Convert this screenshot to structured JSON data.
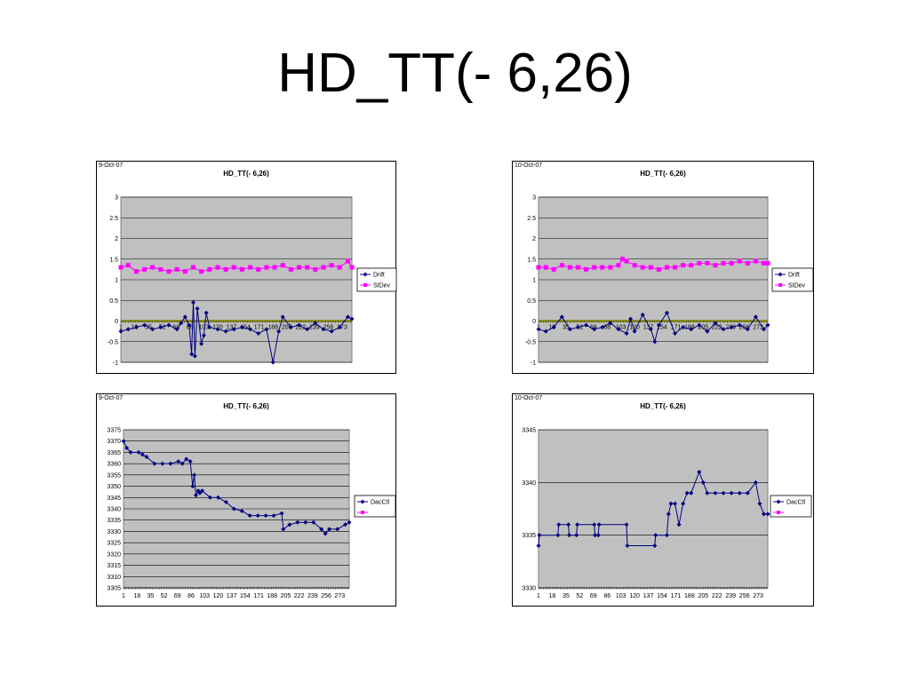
{
  "slide": {
    "title": "HD_TT(- 6,26)"
  },
  "colors": {
    "plot_bg": "#c0c0c0",
    "drift": "#000080",
    "stdev": "#ff00ff",
    "dacctl": "#000080",
    "grid": "#000000",
    "zero_line": "#808000"
  },
  "chart_data": [
    {
      "id": "c1",
      "type": "line",
      "date": "9-Oct-07",
      "title": "HD_TT(- 6,26)",
      "ylim": [
        -1,
        3
      ],
      "yticks": [
        "3",
        "2.5",
        "2",
        "1.5",
        "1",
        "0.5",
        "0",
        "-0.5",
        "-1"
      ],
      "xticks": [
        "1",
        "18",
        "35",
        "52",
        "69",
        "86",
        "103",
        "120",
        "137",
        "154",
        "171",
        "188",
        "205",
        "222",
        "239",
        "256",
        "273"
      ],
      "n_points": 285,
      "series": [
        {
          "name": "Drift",
          "marker": "diamond",
          "color": "#000080",
          "x": [
            1,
            10,
            20,
            30,
            40,
            50,
            60,
            70,
            75,
            80,
            85,
            88,
            90,
            92,
            95,
            100,
            103,
            106,
            110,
            120,
            130,
            140,
            150,
            160,
            170,
            180,
            188,
            195,
            200,
            210,
            220,
            230,
            240,
            250,
            260,
            270,
            280,
            285
          ],
          "y": [
            -0.25,
            -0.2,
            -0.15,
            -0.1,
            -0.2,
            -0.15,
            -0.1,
            -0.2,
            -0.05,
            0.1,
            -0.1,
            -0.8,
            0.45,
            -0.85,
            0.3,
            -0.55,
            -0.35,
            0.2,
            -0.15,
            -0.2,
            -0.25,
            -0.2,
            -0.15,
            -0.2,
            -0.3,
            -0.2,
            -1.0,
            -0.25,
            0.1,
            -0.15,
            -0.1,
            -0.2,
            -0.05,
            -0.2,
            -0.25,
            -0.15,
            0.1,
            0.05
          ]
        },
        {
          "name": "StDev",
          "marker": "square",
          "color": "#ff00ff",
          "x": [
            1,
            10,
            20,
            30,
            40,
            50,
            60,
            70,
            80,
            90,
            100,
            110,
            120,
            130,
            140,
            150,
            160,
            170,
            180,
            190,
            200,
            210,
            220,
            230,
            240,
            250,
            260,
            270,
            280,
            285
          ],
          "y": [
            1.3,
            1.35,
            1.2,
            1.25,
            1.3,
            1.25,
            1.2,
            1.25,
            1.2,
            1.3,
            1.2,
            1.25,
            1.3,
            1.25,
            1.3,
            1.25,
            1.3,
            1.25,
            1.3,
            1.3,
            1.35,
            1.25,
            1.3,
            1.3,
            1.25,
            1.3,
            1.35,
            1.3,
            1.45,
            1.3
          ]
        }
      ]
    },
    {
      "id": "c2",
      "type": "line",
      "date": "10-Oct-07",
      "title": "HD_TT(- 6,26)",
      "ylim": [
        -1,
        3
      ],
      "yticks": [
        "3",
        "2.5",
        "2",
        "1.5",
        "1",
        "0.5",
        "0",
        "-0.5",
        "-1"
      ],
      "xticks": [
        "1",
        "18",
        "35",
        "52",
        "69",
        "86",
        "103",
        "120",
        "137",
        "154",
        "171",
        "188",
        "205",
        "222",
        "239",
        "256",
        "273"
      ],
      "n_points": 285,
      "series": [
        {
          "name": "Drift",
          "marker": "diamond",
          "color": "#000080",
          "x": [
            1,
            10,
            20,
            30,
            40,
            50,
            60,
            70,
            80,
            90,
            100,
            110,
            115,
            120,
            130,
            140,
            145,
            150,
            160,
            170,
            180,
            190,
            200,
            210,
            220,
            230,
            240,
            250,
            260,
            270,
            280,
            285
          ],
          "y": [
            -0.2,
            -0.25,
            -0.15,
            0.1,
            -0.2,
            -0.15,
            -0.1,
            -0.2,
            -0.15,
            -0.05,
            -0.2,
            -0.3,
            0.05,
            -0.25,
            0.15,
            -0.2,
            -0.5,
            -0.1,
            0.2,
            -0.3,
            -0.15,
            -0.2,
            -0.1,
            -0.25,
            -0.05,
            -0.2,
            -0.15,
            -0.1,
            -0.2,
            0.1,
            -0.2,
            -0.1
          ]
        },
        {
          "name": "StDev",
          "marker": "square",
          "color": "#ff00ff",
          "x": [
            1,
            10,
            20,
            30,
            40,
            50,
            60,
            70,
            80,
            90,
            100,
            105,
            110,
            120,
            130,
            140,
            150,
            160,
            170,
            180,
            190,
            200,
            210,
            220,
            230,
            240,
            250,
            260,
            270,
            280,
            285
          ],
          "y": [
            1.3,
            1.3,
            1.25,
            1.35,
            1.3,
            1.3,
            1.25,
            1.3,
            1.3,
            1.3,
            1.35,
            1.5,
            1.45,
            1.35,
            1.3,
            1.3,
            1.25,
            1.3,
            1.3,
            1.35,
            1.35,
            1.4,
            1.4,
            1.35,
            1.4,
            1.4,
            1.45,
            1.4,
            1.45,
            1.4,
            1.4
          ]
        }
      ]
    },
    {
      "id": "c3",
      "type": "line",
      "date": "9-Oct-07",
      "title": "HD_TT(- 6,26)",
      "ylim": [
        3305,
        3375
      ],
      "yticks": [
        "3375",
        "3370",
        "3365",
        "3360",
        "3355",
        "3350",
        "3345",
        "3340",
        "3335",
        "3330",
        "3325",
        "3320",
        "3315",
        "3310",
        "3305"
      ],
      "xticks": [
        "1",
        "18",
        "35",
        "52",
        "69",
        "86",
        "103",
        "120",
        "137",
        "154",
        "171",
        "188",
        "205",
        "222",
        "239",
        "256",
        "273"
      ],
      "n_points": 285,
      "series": [
        {
          "name": "DacCtl",
          "marker": "diamond",
          "color": "#000080",
          "x": [
            1,
            5,
            10,
            20,
            25,
            30,
            40,
            50,
            60,
            70,
            75,
            80,
            85,
            88,
            90,
            92,
            95,
            97,
            100,
            110,
            120,
            130,
            140,
            150,
            160,
            170,
            180,
            190,
            200,
            202,
            210,
            220,
            230,
            240,
            250,
            255,
            260,
            270,
            280,
            285
          ],
          "y": [
            3370,
            3367,
            3365,
            3365,
            3364,
            3363,
            3360,
            3360,
            3360,
            3361,
            3360,
            3362,
            3361,
            3350,
            3355,
            3346,
            3348,
            3347,
            3348,
            3345,
            3345,
            3343,
            3340,
            3339,
            3337,
            3337,
            3337,
            3337,
            3338,
            3331,
            3333,
            3334,
            3334,
            3334,
            3331,
            3329,
            3331,
            3331,
            3333,
            3334
          ]
        },
        {
          "name": "",
          "marker": "square",
          "color": "#ff00ff",
          "x": [],
          "y": []
        }
      ]
    },
    {
      "id": "c4",
      "type": "line",
      "date": "10-Oct-07",
      "title": "HD_TT(- 6,26)",
      "ylim": [
        3330,
        3345
      ],
      "yticks": [
        "3345",
        "3340",
        "3335",
        "3330"
      ],
      "xticks": [
        "1",
        "18",
        "35",
        "52",
        "69",
        "86",
        "103",
        "120",
        "137",
        "154",
        "171",
        "188",
        "205",
        "222",
        "239",
        "256",
        "273"
      ],
      "n_points": 285,
      "series": [
        {
          "name": "DacCtl",
          "marker": "diamond",
          "color": "#000080",
          "x": [
            1,
            2,
            25,
            26,
            38,
            39,
            48,
            49,
            70,
            71,
            75,
            76,
            110,
            111,
            145,
            146,
            160,
            162,
            165,
            170,
            175,
            180,
            185,
            190,
            200,
            205,
            210,
            220,
            230,
            240,
            250,
            260,
            270,
            275,
            280,
            285
          ],
          "y": [
            3334,
            3335,
            3335,
            3336,
            3336,
            3335,
            3335,
            3336,
            3336,
            3335,
            3335,
            3336,
            3336,
            3334,
            3334,
            3335,
            3335,
            3337,
            3338,
            3338,
            3336,
            3338,
            3339,
            3339,
            3341,
            3340,
            3339,
            3339,
            3339,
            3339,
            3339,
            3339,
            3340,
            3338,
            3337,
            3337
          ]
        },
        {
          "name": "",
          "marker": "square",
          "color": "#ff00ff",
          "x": [],
          "y": []
        }
      ]
    }
  ]
}
